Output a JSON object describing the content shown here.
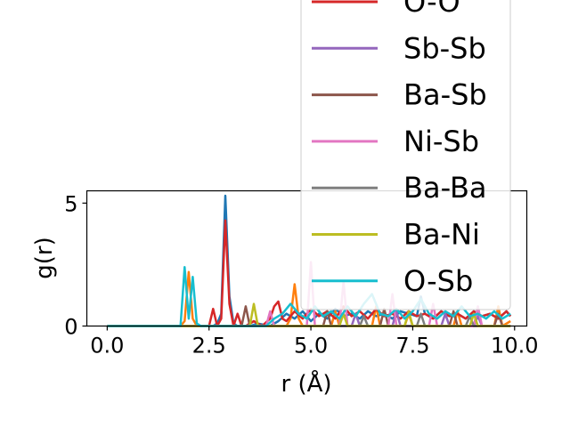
{
  "chart_data": {
    "type": "line",
    "xlabel": "r (Å)",
    "ylabel": "g(r)",
    "xlim": [
      -0.5,
      10.3
    ],
    "ylim": [
      0,
      5.5
    ],
    "xticks": [
      0.0,
      2.5,
      5.0,
      7.5,
      10.0
    ],
    "xtick_labels": [
      "0.0",
      "2.5",
      "5.0",
      "7.5",
      "10.0"
    ],
    "yticks": [
      0,
      5
    ],
    "ytick_labels": [
      "0",
      "5"
    ],
    "grid": false,
    "legend_position": "upper-right, extends above axes",
    "series": [
      {
        "name": "",
        "color": "#1f77b4",
        "x": [
          0.0,
          2.5,
          2.6,
          2.7,
          2.8,
          2.9,
          3.0,
          3.1,
          3.2,
          3.3,
          3.5,
          3.7,
          4.0,
          4.2,
          4.4,
          4.6,
          4.8,
          5.0,
          5.2,
          5.4,
          5.6,
          5.8,
          6.0,
          6.2,
          6.4,
          6.6,
          6.8,
          7.0,
          7.2,
          7.4,
          7.6,
          7.7,
          7.8,
          8.0,
          8.2,
          8.4,
          8.6,
          8.8,
          9.0,
          9.2,
          9.4,
          9.6,
          9.8,
          9.9
        ],
        "y": [
          0,
          0,
          0,
          0.1,
          0.5,
          5.3,
          1.2,
          0.1,
          0,
          0,
          0,
          0.1,
          0,
          0.2,
          0.5,
          0.3,
          0.6,
          0.2,
          0.5,
          0.3,
          0.7,
          0.4,
          0.5,
          0.3,
          0.6,
          0.4,
          0.5,
          0.3,
          0.6,
          0.5,
          0.4,
          1.2,
          0.5,
          0.3,
          0.6,
          0.4,
          0.5,
          0.3,
          0.6,
          0.4,
          0.5,
          0.3,
          0.6,
          0.4
        ]
      },
      {
        "name": "",
        "color": "#ff7f0e",
        "x": [
          0.0,
          1.8,
          1.9,
          2.0,
          2.1,
          2.2,
          2.3,
          4.4,
          4.5,
          4.6,
          4.7,
          4.8,
          5.5,
          5.6,
          5.7,
          6.5,
          6.6,
          6.7,
          7.3,
          7.4,
          7.5,
          8.5,
          8.6,
          8.7,
          9.5,
          9.6,
          9.7,
          9.9
        ],
        "y": [
          0,
          0,
          0.2,
          2.2,
          0.3,
          0,
          0,
          0,
          0.3,
          1.7,
          0.3,
          0,
          0,
          0.6,
          0,
          0,
          0.8,
          0,
          0,
          0.5,
          0,
          0,
          0.6,
          0,
          0,
          0.8,
          0,
          0.2
        ]
      },
      {
        "name": "O-O",
        "color": "#d62728",
        "x": [
          0.0,
          2.4,
          2.5,
          2.6,
          2.7,
          2.8,
          2.9,
          3.0,
          3.1,
          3.2,
          3.3,
          3.4,
          3.6,
          3.8,
          4.0,
          4.1,
          4.2,
          4.3,
          4.4,
          4.6,
          4.8,
          5.0,
          5.2,
          5.4,
          5.6,
          5.8,
          6.0,
          6.2,
          6.4,
          6.6,
          6.8,
          7.0,
          7.2,
          7.4,
          7.6,
          7.8,
          8.0,
          8.2,
          8.4,
          8.6,
          8.8,
          9.0,
          9.2,
          9.4,
          9.6,
          9.8,
          9.9
        ],
        "y": [
          0,
          0,
          0,
          0.7,
          0,
          0.3,
          4.3,
          0.9,
          0,
          0.5,
          0,
          0,
          0.2,
          0,
          0.3,
          0.8,
          1.0,
          0.3,
          0.2,
          0.6,
          0.3,
          0.7,
          0.4,
          0.6,
          0.3,
          0.8,
          0.4,
          0.6,
          0.3,
          0.7,
          0.4,
          0.5,
          0.3,
          0.6,
          0.4,
          0.5,
          0.3,
          0.6,
          0.4,
          0.5,
          0.3,
          0.6,
          0.4,
          0.5,
          0.3,
          0.6,
          0.4
        ]
      },
      {
        "name": "Sb-Sb",
        "color": "#9467bd",
        "x": [
          0.0,
          6.0,
          6.1,
          6.2,
          6.3,
          7.0,
          7.1,
          7.2,
          7.3,
          8.2,
          8.3,
          8.4,
          8.5,
          9.0,
          9.1,
          9.2,
          9.9
        ],
        "y": [
          0,
          0,
          0.5,
          0,
          0,
          0,
          0.6,
          0,
          0,
          0,
          0.5,
          0,
          0,
          0,
          0.4,
          0,
          0
        ]
      },
      {
        "name": "Ba-Sb",
        "color": "#8c564b",
        "x": [
          0.0,
          3.3,
          3.4,
          3.5,
          3.6,
          5.3,
          5.4,
          5.5,
          5.6,
          6.7,
          6.8,
          6.9,
          7.0,
          8.4,
          8.5,
          8.6,
          8.7,
          9.5,
          9.6,
          9.7,
          9.9
        ],
        "y": [
          0,
          0,
          0.8,
          0,
          0,
          0,
          0.6,
          0,
          0,
          0,
          0.7,
          0,
          0,
          0,
          0.6,
          0,
          0,
          0,
          0.5,
          0,
          0
        ]
      },
      {
        "name": "Ni-Sb",
        "color": "#e377c2",
        "x": [
          0.0,
          3.9,
          4.0,
          4.1,
          4.2,
          4.9,
          5.0,
          5.1,
          5.2,
          5.7,
          5.8,
          5.9,
          6.0,
          6.9,
          7.0,
          7.1,
          7.2,
          7.9,
          8.0,
          8.1,
          9.0,
          9.1,
          9.2,
          9.3,
          9.9
        ],
        "y": [
          0,
          0,
          0.6,
          0,
          0,
          0,
          2.6,
          0,
          0,
          0,
          1.8,
          0,
          0,
          0,
          1.3,
          0,
          0,
          0,
          0.9,
          0,
          0,
          0.8,
          0,
          0,
          0
        ]
      },
      {
        "name": "Ba-Ba",
        "color": "#7f7f7f",
        "x": [
          0.0,
          6.2,
          6.3,
          6.4,
          6.5,
          7.6,
          7.7,
          7.8,
          7.9,
          8.8,
          8.9,
          9.0,
          9.1,
          9.9
        ],
        "y": [
          0,
          0,
          0.4,
          0,
          0,
          0,
          0.5,
          0,
          0,
          0,
          0.4,
          0,
          0,
          0
        ]
      },
      {
        "name": "Ba-Ni",
        "color": "#bcbd22",
        "x": [
          0.0,
          3.5,
          3.6,
          3.7,
          3.8,
          5.7,
          5.8,
          5.9,
          6.0,
          7.3,
          7.4,
          7.5,
          7.6,
          8.9,
          9.0,
          9.1,
          9.2,
          9.9
        ],
        "y": [
          0,
          0,
          0.9,
          0,
          0,
          0,
          0.5,
          0,
          0,
          0,
          0.6,
          0,
          0,
          0,
          0.5,
          0,
          0,
          0
        ]
      },
      {
        "name": "O-Sb",
        "color": "#17becf",
        "x": [
          0.0,
          1.8,
          1.9,
          2.0,
          2.1,
          2.2,
          2.3,
          3.9,
          4.1,
          4.3,
          4.5,
          4.7,
          4.9,
          5.1,
          5.3,
          5.5,
          5.7,
          5.9,
          6.1,
          6.3,
          6.5,
          6.7,
          6.9,
          7.1,
          7.3,
          7.5,
          7.7,
          7.9,
          8.1,
          8.3,
          8.5,
          8.7,
          8.9,
          9.1,
          9.3,
          9.5,
          9.7,
          9.9
        ],
        "y": [
          0,
          0,
          2.4,
          0.3,
          2.0,
          0.1,
          0,
          0,
          0.3,
          0.5,
          0.9,
          0.5,
          0.3,
          0.8,
          0.4,
          0.6,
          0.3,
          0.8,
          0.4,
          0.9,
          1.3,
          0.5,
          0.4,
          0.7,
          0.3,
          0.6,
          1.1,
          0.5,
          0.3,
          0.6,
          0.4,
          0.8,
          0.4,
          0.5,
          0.3,
          0.6,
          0.3,
          0.5
        ]
      }
    ]
  }
}
